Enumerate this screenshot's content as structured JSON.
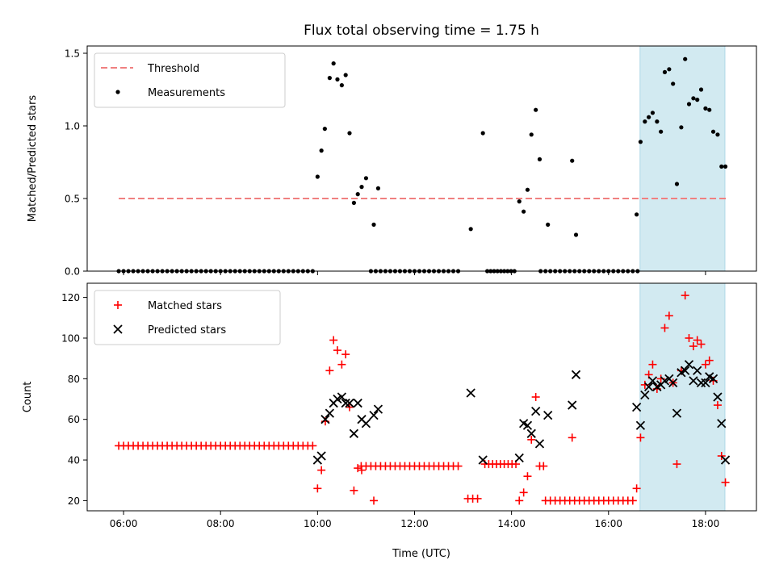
{
  "chart_data": {
    "title": "Flux total observing time = 1.75 h",
    "xlabel": "Time (UTC)",
    "x_ticks": [
      "06:00",
      "08:00",
      "10:00",
      "12:00",
      "14:00",
      "16:00",
      "18:00"
    ],
    "x_tick_hours": [
      6,
      8,
      10,
      12,
      14,
      16,
      18
    ],
    "xlim_hours": [
      5.25,
      19.05
    ],
    "highlight_span_hours": [
      16.65,
      18.4
    ],
    "colors": {
      "threshold": "#f08080",
      "measurement": "#000000",
      "matched": "#ff0000",
      "predicted": "#000000",
      "span": "#add8e6"
    },
    "panels": [
      {
        "type": "scatter",
        "ylabel": "Matched/Predicted stars",
        "ylim": [
          0,
          1.55
        ],
        "y_ticks": [
          "0.0",
          "0.5",
          "1.0",
          "1.5"
        ],
        "y_tick_values": [
          0,
          0.5,
          1.0,
          1.5
        ],
        "legend_position": "top-left",
        "series": [
          {
            "name": "Threshold",
            "kind": "dashed-line",
            "x": [
              5.9,
              18.45
            ],
            "y": [
              0.5,
              0.5
            ]
          },
          {
            "name": "Measurements",
            "kind": "dots",
            "zero_runs": [
              [
                5.9,
                9.9,
                0.1
              ],
              [
                11.1,
                12.9,
                0.1
              ],
              [
                13.5,
                14.05,
                0.07
              ],
              [
                14.6,
                16.6,
                0.1
              ]
            ],
            "points": [
              [
                10.0,
                0.65
              ],
              [
                10.08,
                0.83
              ],
              [
                10.15,
                0.98
              ],
              [
                10.25,
                1.33
              ],
              [
                10.33,
                1.43
              ],
              [
                10.41,
                1.32
              ],
              [
                10.5,
                1.28
              ],
              [
                10.58,
                1.35
              ],
              [
                10.66,
                0.95
              ],
              [
                10.75,
                0.47
              ],
              [
                10.83,
                0.53
              ],
              [
                10.91,
                0.58
              ],
              [
                11.0,
                0.64
              ],
              [
                11.16,
                0.32
              ],
              [
                11.25,
                0.57
              ],
              [
                13.16,
                0.29
              ],
              [
                13.41,
                0.95
              ],
              [
                14.16,
                0.48
              ],
              [
                14.25,
                0.41
              ],
              [
                14.33,
                0.56
              ],
              [
                14.41,
                0.94
              ],
              [
                14.5,
                1.11
              ],
              [
                14.58,
                0.77
              ],
              [
                14.75,
                0.32
              ],
              [
                15.25,
                0.76
              ],
              [
                15.33,
                0.25
              ],
              [
                16.58,
                0.39
              ],
              [
                16.66,
                0.89
              ],
              [
                16.75,
                1.03
              ],
              [
                16.83,
                1.06
              ],
              [
                16.91,
                1.09
              ],
              [
                17.0,
                1.03
              ],
              [
                17.08,
                0.96
              ],
              [
                17.16,
                1.37
              ],
              [
                17.25,
                1.39
              ],
              [
                17.33,
                1.29
              ],
              [
                17.41,
                0.6
              ],
              [
                17.5,
                0.99
              ],
              [
                17.58,
                1.46
              ],
              [
                17.66,
                1.15
              ],
              [
                17.75,
                1.19
              ],
              [
                17.83,
                1.18
              ],
              [
                17.91,
                1.25
              ],
              [
                18.0,
                1.12
              ],
              [
                18.08,
                1.11
              ],
              [
                18.16,
                0.96
              ],
              [
                18.25,
                0.94
              ],
              [
                18.33,
                0.72
              ],
              [
                18.41,
                0.72
              ]
            ]
          }
        ]
      },
      {
        "type": "scatter",
        "ylabel": "Count",
        "ylim": [
          15,
          127
        ],
        "y_ticks": [
          "20",
          "40",
          "60",
          "80",
          "100",
          "120"
        ],
        "y_tick_values": [
          20,
          40,
          60,
          80,
          100,
          120
        ],
        "legend_position": "top-left",
        "series": [
          {
            "name": "Matched stars",
            "kind": "plus",
            "runs": [
              [
                5.9,
                9.9,
                0.1,
                47
              ],
              [
                10.9,
                12.9,
                0.1,
                37
              ],
              [
                13.45,
                14.05,
                0.08,
                38
              ],
              [
                14.7,
                16.5,
                0.1,
                20
              ]
            ],
            "points": [
              [
                10.0,
                26
              ],
              [
                10.08,
                35
              ],
              [
                10.16,
                59
              ],
              [
                10.25,
                84
              ],
              [
                10.33,
                99
              ],
              [
                10.41,
                94
              ],
              [
                10.5,
                87
              ],
              [
                10.58,
                92
              ],
              [
                10.66,
                66
              ],
              [
                10.75,
                25
              ],
              [
                10.83,
                36
              ],
              [
                10.91,
                35
              ],
              [
                11.16,
                20
              ],
              [
                13.1,
                21
              ],
              [
                13.2,
                21
              ],
              [
                13.3,
                21
              ],
              [
                14.16,
                20
              ],
              [
                14.25,
                24
              ],
              [
                14.33,
                32
              ],
              [
                14.41,
                50
              ],
              [
                14.5,
                71
              ],
              [
                14.58,
                37
              ],
              [
                14.66,
                37
              ],
              [
                15.25,
                51
              ],
              [
                16.58,
                26
              ],
              [
                16.66,
                51
              ],
              [
                16.75,
                77
              ],
              [
                16.83,
                82
              ],
              [
                16.91,
                87
              ],
              [
                17.0,
                75
              ],
              [
                17.08,
                80
              ],
              [
                17.16,
                105
              ],
              [
                17.25,
                111
              ],
              [
                17.33,
                78
              ],
              [
                17.41,
                38
              ],
              [
                17.5,
                84
              ],
              [
                17.58,
                121
              ],
              [
                17.66,
                100
              ],
              [
                17.75,
                96
              ],
              [
                17.83,
                99
              ],
              [
                17.91,
                97
              ],
              [
                18.0,
                87
              ],
              [
                18.08,
                89
              ],
              [
                18.16,
                79
              ],
              [
                18.25,
                67
              ],
              [
                18.33,
                42
              ],
              [
                18.41,
                29
              ]
            ]
          },
          {
            "name": "Predicted stars",
            "kind": "cross",
            "points": [
              [
                10.0,
                40
              ],
              [
                10.08,
                42
              ],
              [
                10.16,
                60
              ],
              [
                10.25,
                63
              ],
              [
                10.33,
                68
              ],
              [
                10.41,
                70
              ],
              [
                10.5,
                71
              ],
              [
                10.58,
                68
              ],
              [
                10.66,
                68
              ],
              [
                10.75,
                53
              ],
              [
                10.83,
                68
              ],
              [
                10.91,
                60
              ],
              [
                11.0,
                58
              ],
              [
                11.16,
                62
              ],
              [
                11.25,
                65
              ],
              [
                13.16,
                73
              ],
              [
                13.41,
                40
              ],
              [
                14.16,
                41
              ],
              [
                14.25,
                58
              ],
              [
                14.33,
                57
              ],
              [
                14.41,
                53
              ],
              [
                14.5,
                64
              ],
              [
                14.58,
                48
              ],
              [
                14.75,
                62
              ],
              [
                15.25,
                67
              ],
              [
                15.33,
                82
              ],
              [
                16.58,
                66
              ],
              [
                16.66,
                57
              ],
              [
                16.75,
                72
              ],
              [
                16.83,
                76
              ],
              [
                16.91,
                79
              ],
              [
                17.0,
                76
              ],
              [
                17.08,
                77
              ],
              [
                17.16,
                79
              ],
              [
                17.25,
                80
              ],
              [
                17.33,
                78
              ],
              [
                17.41,
                63
              ],
              [
                17.5,
                83
              ],
              [
                17.58,
                84
              ],
              [
                17.66,
                87
              ],
              [
                17.75,
                79
              ],
              [
                17.83,
                84
              ],
              [
                17.91,
                78
              ],
              [
                18.0,
                78
              ],
              [
                18.08,
                81
              ],
              [
                18.16,
                80
              ],
              [
                18.25,
                71
              ],
              [
                18.33,
                58
              ],
              [
                18.41,
                40
              ]
            ]
          }
        ]
      }
    ]
  }
}
